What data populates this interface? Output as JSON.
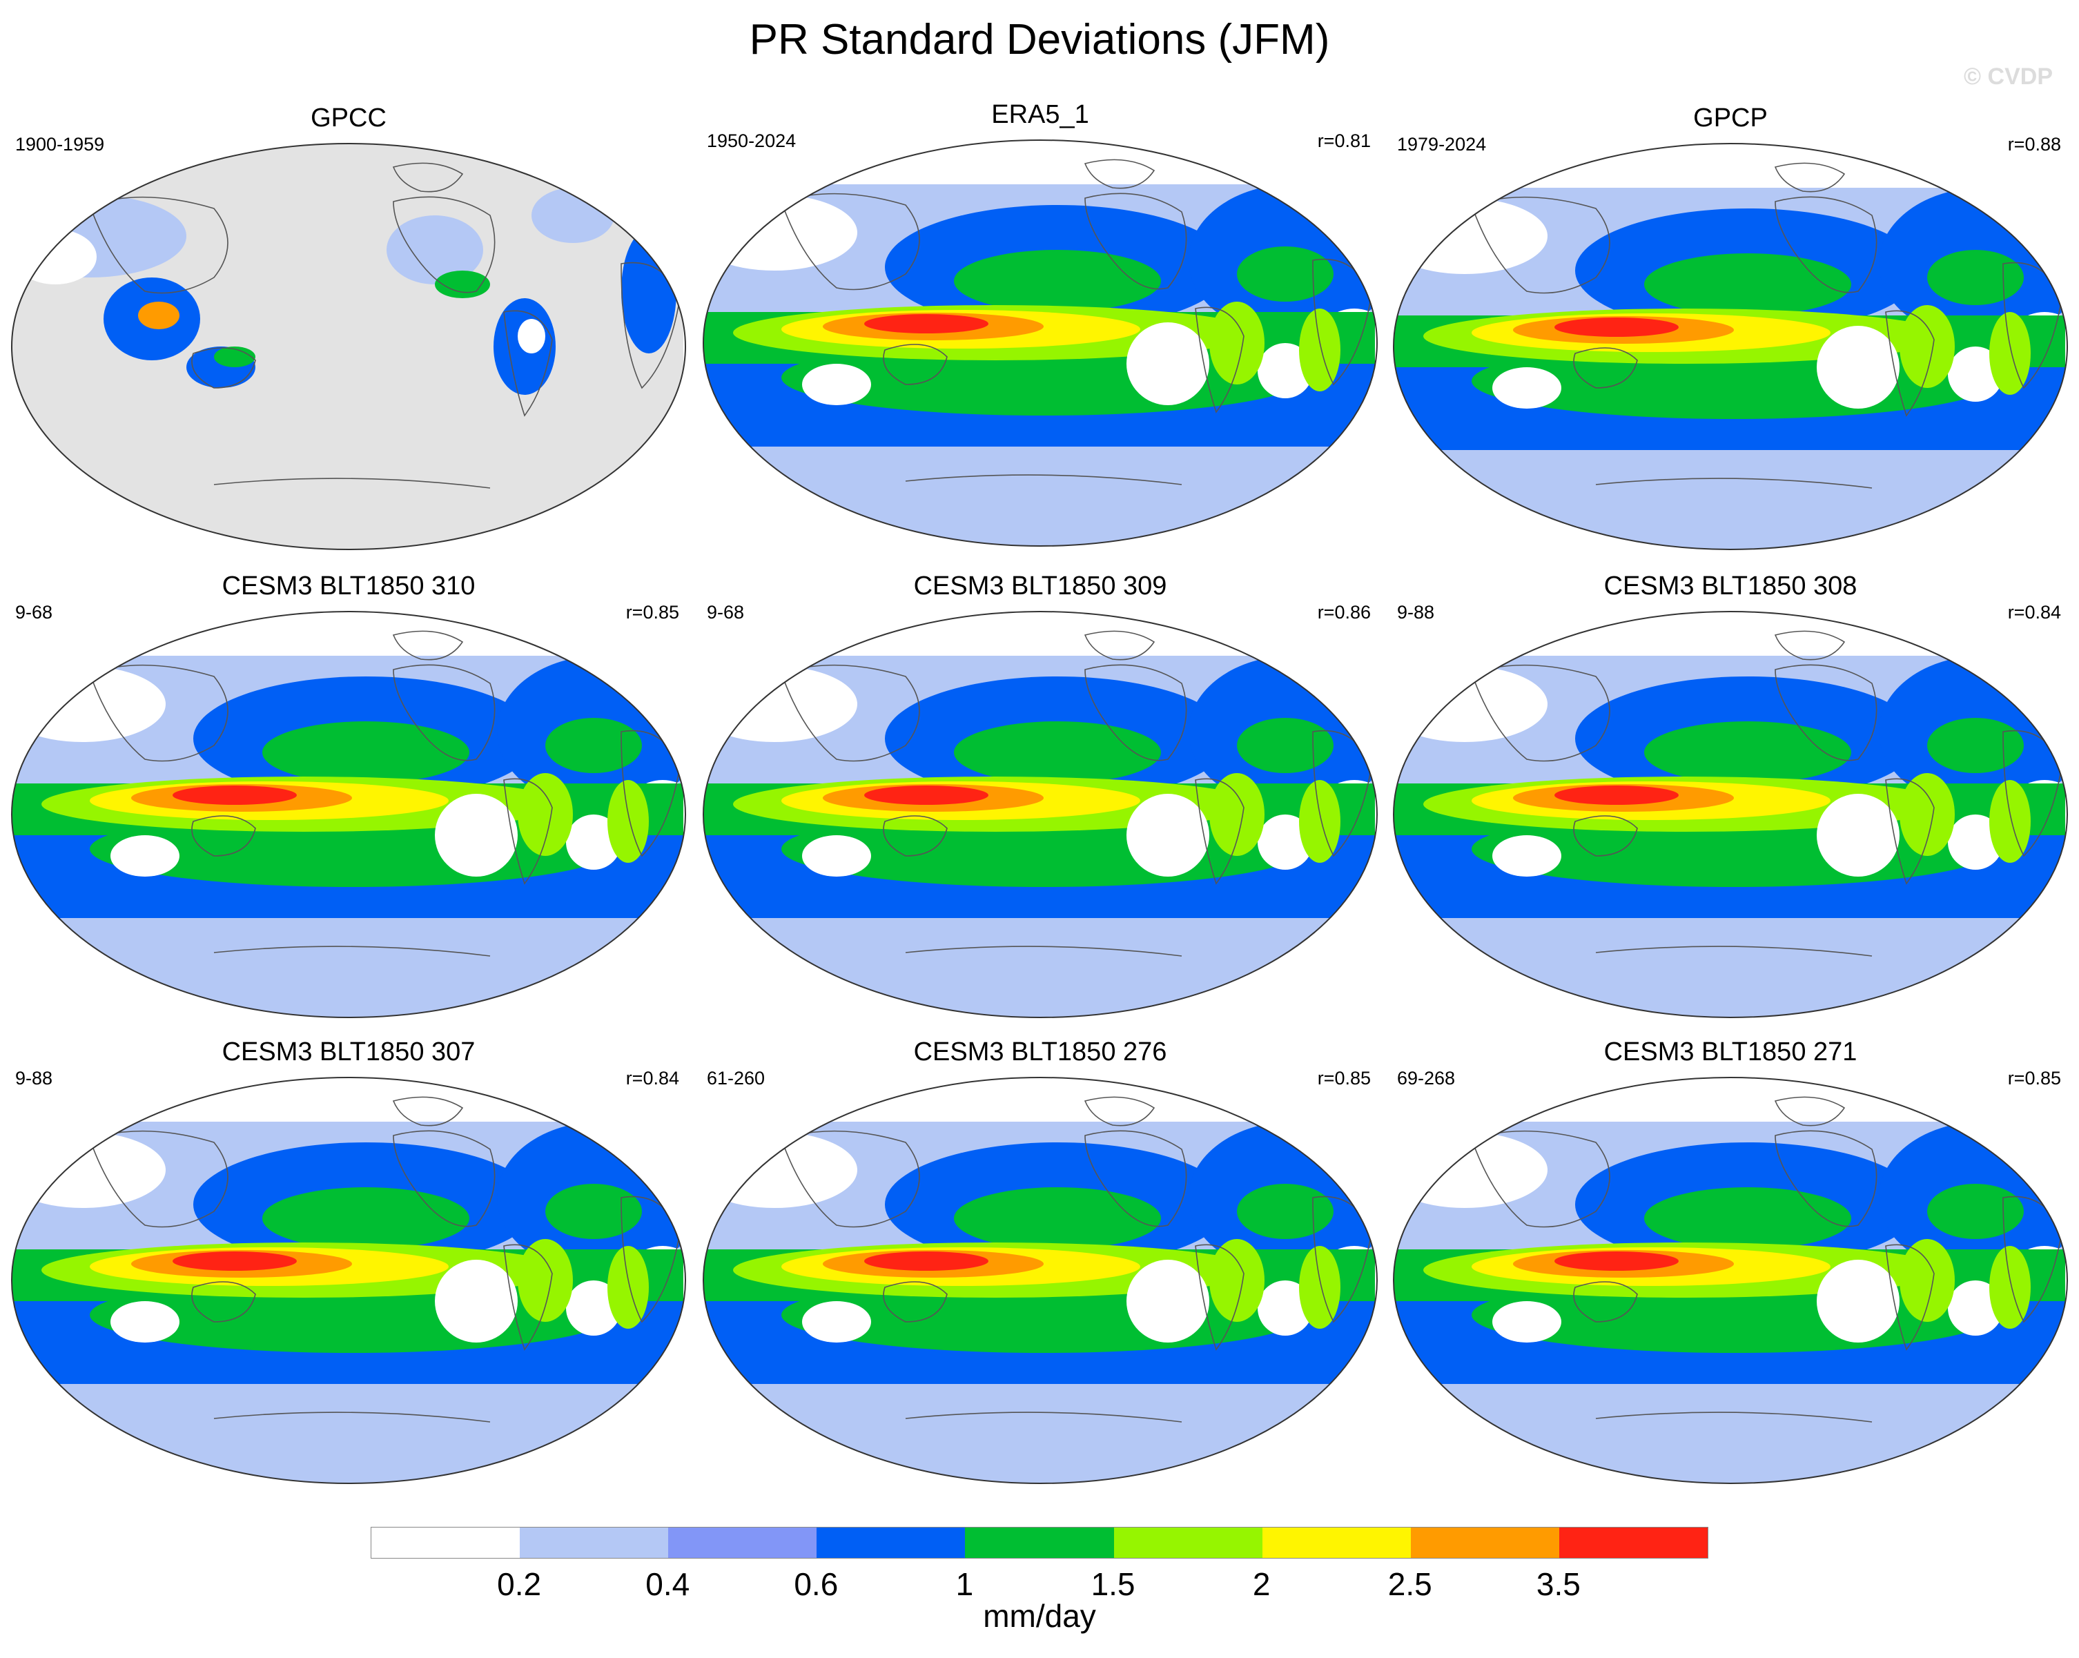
{
  "title": "PR Standard Deviations (JFM)",
  "watermark": "© CVDP",
  "panels": [
    {
      "title": "GPCC",
      "years": "1900-1959",
      "r": "",
      "style": "obs-land"
    },
    {
      "title": "ERA5_1",
      "years": "1950-2024",
      "r": "r=0.81",
      "style": "obs"
    },
    {
      "title": "GPCP",
      "years": "1979-2024",
      "r": "r=0.88",
      "style": "obs"
    },
    {
      "title": "CESM3 BLT1850 310",
      "years": "9-68",
      "r": "r=0.85",
      "style": "model"
    },
    {
      "title": "CESM3 BLT1850 309",
      "years": "9-68",
      "r": "r=0.86",
      "style": "model"
    },
    {
      "title": "CESM3 BLT1850 308",
      "years": "9-88",
      "r": "r=0.84",
      "style": "model"
    },
    {
      "title": "CESM3 BLT1850 307",
      "years": "9-88",
      "r": "r=0.84",
      "style": "model"
    },
    {
      "title": "CESM3 BLT1850 276",
      "years": "61-260",
      "r": "r=0.85",
      "style": "model"
    },
    {
      "title": "CESM3 BLT1850 271",
      "years": "69-268",
      "r": "r=0.85",
      "style": "model"
    }
  ],
  "colorbar": {
    "colors": [
      "#ffffff",
      "#b4c8f5",
      "#8296f7",
      "#005ff5",
      "#00be32",
      "#96f500",
      "#fff500",
      "#ff9b00",
      "#ff2314"
    ],
    "labels": [
      "0.2",
      "0.4",
      "0.6",
      "1",
      "1.5",
      "2",
      "2.5",
      "3.5"
    ],
    "units": "mm/day"
  },
  "missing_color": "#e3e3e3"
}
